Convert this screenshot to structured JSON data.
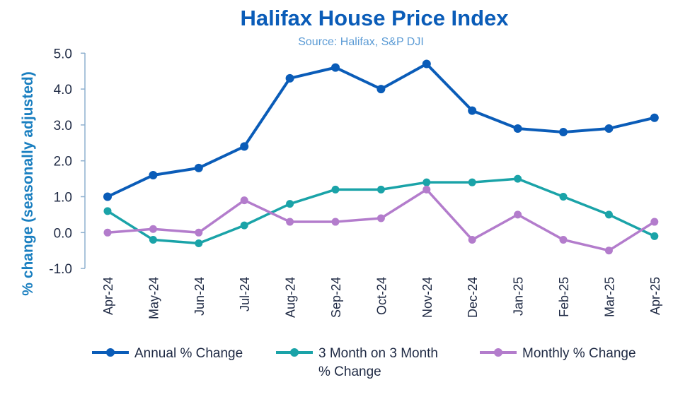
{
  "chart_data": {
    "type": "line",
    "title": "Halifax House Price Index",
    "subtitle": "Source: Halifax, S&P DJI",
    "ylabel": "% change (seasonally adjusted)",
    "xlabel": "",
    "ylim": [
      -1.0,
      5.0
    ],
    "yticks": [
      "5.0",
      "4.0",
      "3.0",
      "2.0",
      "1.0",
      "0.0",
      "-1.0"
    ],
    "ytick_values": [
      5,
      4,
      3,
      2,
      1,
      0,
      -1
    ],
    "categories": [
      "Apr-24",
      "May-24",
      "Jun-24",
      "Jul-24",
      "Aug-24",
      "Sep-24",
      "Oct-24",
      "Nov-24",
      "Dec-24",
      "Jan-25",
      "Feb-25",
      "Mar-25",
      "Apr-25"
    ],
    "grid": false,
    "legend_position": "bottom",
    "series": [
      {
        "name": "Annual % Change",
        "color": "#0a5cb8",
        "values": [
          1.0,
          1.6,
          1.8,
          2.4,
          4.3,
          4.6,
          4.0,
          4.7,
          3.4,
          2.9,
          2.8,
          2.9,
          3.2
        ]
      },
      {
        "name": "3 Month on 3 Month % Change",
        "name_lines": [
          "3 Month on 3 Month",
          "% Change"
        ],
        "color": "#1aa3a8",
        "values": [
          0.6,
          -0.2,
          -0.3,
          0.2,
          0.8,
          1.2,
          1.2,
          1.4,
          1.4,
          1.5,
          1.0,
          0.5,
          -0.1
        ]
      },
      {
        "name": "Monthly % Change",
        "color": "#b37ccc",
        "values": [
          0.0,
          0.1,
          0.0,
          0.9,
          0.3,
          0.3,
          0.4,
          1.2,
          -0.2,
          0.5,
          -0.2,
          -0.5,
          0.3
        ]
      }
    ]
  }
}
